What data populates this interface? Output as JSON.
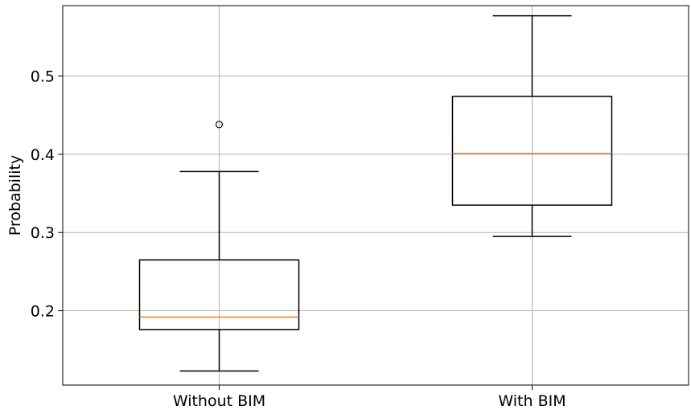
{
  "chart_data": {
    "type": "box",
    "title": "",
    "xlabel": "",
    "ylabel": "Probability",
    "ylim": [
      0.105,
      0.59
    ],
    "grid": true,
    "yticks": [
      0.2,
      0.3,
      0.4,
      0.5
    ],
    "categories": [
      "Without BIM",
      "With BIM"
    ],
    "boxes": [
      {
        "label": "Without BIM",
        "whisker_low": 0.123,
        "q1": 0.176,
        "median": 0.192,
        "q3": 0.265,
        "whisker_high": 0.378,
        "outliers": [
          0.438
        ]
      },
      {
        "label": "With BIM",
        "whisker_low": 0.295,
        "q1": 0.335,
        "median": 0.401,
        "q3": 0.474,
        "whisker_high": 0.577,
        "outliers": []
      }
    ],
    "colors": {
      "box": "#000000",
      "median": "#ff7f0e",
      "grid": "#b0b0b0"
    }
  }
}
